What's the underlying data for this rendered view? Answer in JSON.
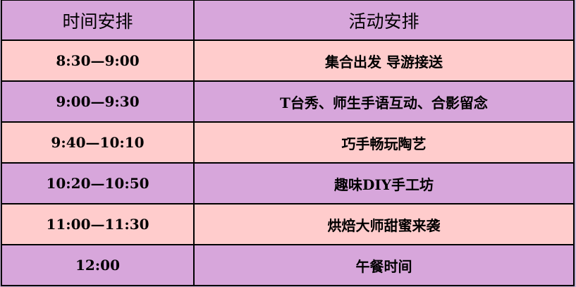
{
  "table": {
    "headers": [
      "时间安排",
      "活动安排"
    ],
    "rows": [
      {
        "time": "8:30—9:00",
        "activity": "集合出发 导游接送"
      },
      {
        "time": "9:00—9:30",
        "activity": "T台秀、师生手语互动、合影留念"
      },
      {
        "time": "9:40—10:10",
        "activity": "巧手畅玩陶艺"
      },
      {
        "time": "10:20—10:50",
        "activity": "趣味DIY手工坊"
      },
      {
        "time": "11:00—11:30",
        "activity": "烘焙大师甜蜜来袭"
      },
      {
        "time": "12:00",
        "activity": "午餐时间"
      }
    ]
  },
  "colors": {
    "header_row": "#d7a6db",
    "odd_row": "#ffcccc",
    "even_row": "#d7a6db"
  }
}
